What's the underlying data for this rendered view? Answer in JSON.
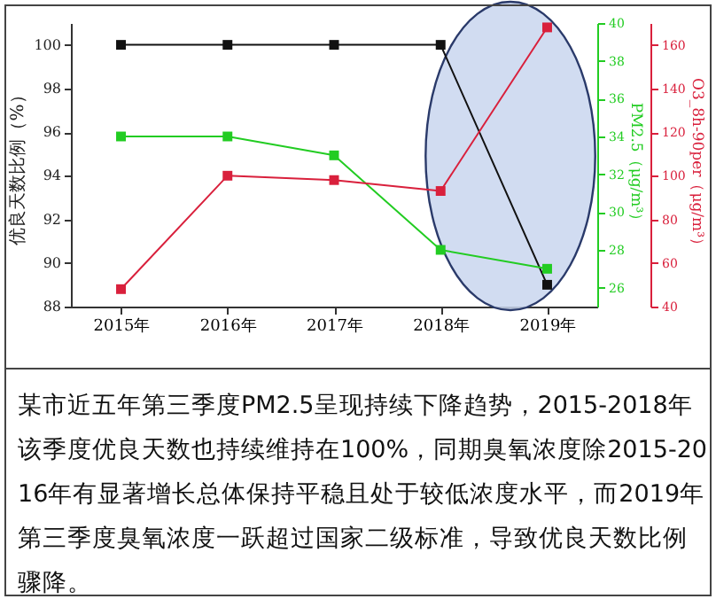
{
  "chart_data": {
    "type": "line",
    "categories": [
      "2015年",
      "2016年",
      "2017年",
      "2018年",
      "2019年"
    ],
    "ylabel": "优良天数比例（%）",
    "y2label": "PM2.5（μg/m³）",
    "y3label": "O3_8h-90per（μg/m³）",
    "ylim": [
      88,
      101
    ],
    "yticks": [
      88,
      90,
      92,
      94,
      96,
      98,
      100
    ],
    "y2lim": [
      25,
      40
    ],
    "y2ticks": [
      26,
      28,
      30,
      32,
      34,
      36,
      38,
      40
    ],
    "y3lim": [
      40,
      170
    ],
    "y3ticks": [
      40,
      60,
      80,
      100,
      120,
      140,
      160
    ],
    "series": [
      {
        "color": "#111111",
        "values": [
          100,
          100,
          100,
          100,
          89
        ]
      },
      {
        "color": "#22cc22",
        "values": [
          34,
          34,
          33,
          28,
          27
        ],
        "axis": "y2"
      },
      {
        "color": "#d9203c",
        "values": [
          48,
          100,
          98,
          93,
          168
        ],
        "axis": "y3"
      }
    ],
    "marker": "square",
    "line_style": "solid",
    "grid": false,
    "annotations": [
      "某市近五年第三季度PM2.5呈现持续下降趋势，2015-2018年该季度优良天数也持续维持在100%，同期臭氧浓度除2015-2016年有显著增长总体保持平稳且处于较低浓度水平，而2019年第三季度臭氧浓度一跃超过国家二级标准，导致优良天数比例骤降。"
    ]
  }
}
